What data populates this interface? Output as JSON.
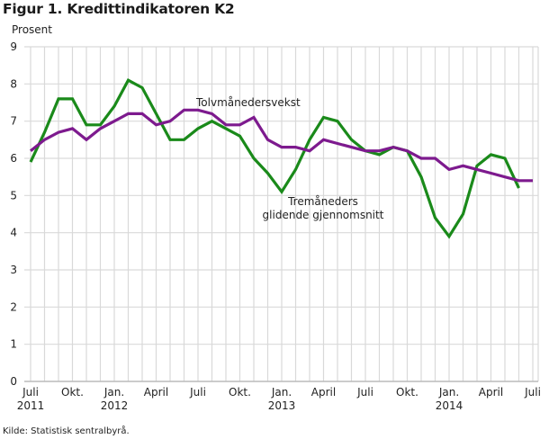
{
  "title": "Figur 1. Kredittindikatoren K2",
  "unit_label": "Prosent",
  "source": "Kilde: Statistisk sentralbyrå.",
  "colors": {
    "tremaneders": "#1a8a1a",
    "tolvmaneders": "#7d1a8e",
    "grid": "#d9d9d9",
    "axis": "#bbbbbb"
  },
  "chart_data": {
    "type": "line",
    "title": "Figur 1. Kredittindikatoren K2",
    "ylabel": "Prosent",
    "xlabel": "",
    "ylim": [
      0,
      9
    ],
    "yticks": [
      0,
      1,
      2,
      3,
      4,
      5,
      6,
      7,
      8,
      9
    ],
    "grid": true,
    "legend_position": "inline annotations",
    "x": [
      "2011-07",
      "2011-08",
      "2011-09",
      "2011-10",
      "2011-11",
      "2011-12",
      "2012-01",
      "2012-02",
      "2012-03",
      "2012-04",
      "2012-05",
      "2012-06",
      "2012-07",
      "2012-08",
      "2012-09",
      "2012-10",
      "2012-11",
      "2012-12",
      "2013-01",
      "2013-02",
      "2013-03",
      "2013-04",
      "2013-05",
      "2013-06",
      "2013-07",
      "2013-08",
      "2013-09",
      "2013-10",
      "2013-11",
      "2013-12",
      "2014-01",
      "2014-02",
      "2014-03",
      "2014-04",
      "2014-05",
      "2014-06",
      "2014-07"
    ],
    "xtick_labels": [
      {
        "index": 0,
        "line1": "Juli",
        "line2": "2011"
      },
      {
        "index": 3,
        "line1": "Okt.",
        "line2": ""
      },
      {
        "index": 6,
        "line1": "Jan.",
        "line2": "2012"
      },
      {
        "index": 9,
        "line1": "April",
        "line2": ""
      },
      {
        "index": 12,
        "line1": "Juli",
        "line2": ""
      },
      {
        "index": 15,
        "line1": "Okt.",
        "line2": ""
      },
      {
        "index": 18,
        "line1": "Jan.",
        "line2": "2013"
      },
      {
        "index": 21,
        "line1": "April",
        "line2": ""
      },
      {
        "index": 24,
        "line1": "Juli",
        "line2": ""
      },
      {
        "index": 27,
        "line1": "Okt.",
        "line2": ""
      },
      {
        "index": 30,
        "line1": "Jan.",
        "line2": "2014"
      },
      {
        "index": 33,
        "line1": "April",
        "line2": ""
      },
      {
        "index": 36,
        "line1": "Juli",
        "line2": ""
      }
    ],
    "series": [
      {
        "name": "Tolvmånedersvekst",
        "color": "#7d1a8e",
        "values": [
          6.2,
          6.5,
          6.7,
          6.8,
          6.5,
          6.8,
          7.0,
          7.2,
          7.2,
          6.9,
          7.0,
          7.3,
          7.3,
          7.2,
          6.9,
          6.9,
          7.1,
          6.5,
          6.3,
          6.3,
          6.2,
          6.5,
          6.4,
          6.3,
          6.2,
          6.2,
          6.3,
          6.2,
          6.0,
          6.0,
          5.7,
          5.8,
          5.7,
          5.6,
          5.5,
          5.4,
          5.4
        ]
      },
      {
        "name": "Tremåneders glidende gjennomsnitt",
        "color": "#1a8a1a",
        "values": [
          5.9,
          6.7,
          7.6,
          7.6,
          6.9,
          6.9,
          7.4,
          8.1,
          7.9,
          7.2,
          6.5,
          6.5,
          6.8,
          7.0,
          6.8,
          6.6,
          6.0,
          5.6,
          5.1,
          5.7,
          6.5,
          7.1,
          7.0,
          6.5,
          6.2,
          6.1,
          6.3,
          6.2,
          5.5,
          4.4,
          3.9,
          4.5,
          5.8,
          6.1,
          6.0,
          5.2,
          null
        ]
      }
    ],
    "annotations": [
      {
        "text": "Tolvmånedersvekst",
        "x_index": 12.5,
        "y": 7.55
      },
      {
        "text_line1": "Tremåneders",
        "text_line2": "glidende gjennomsnitt",
        "x_index": 20.5,
        "y": 4.85
      }
    ]
  }
}
